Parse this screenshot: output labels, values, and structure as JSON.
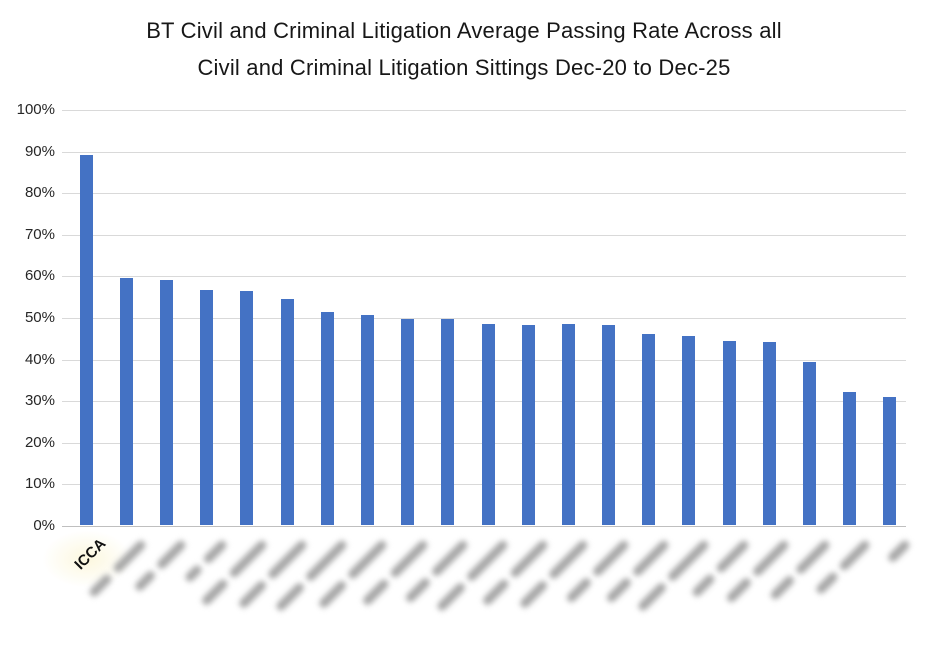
{
  "title": {
    "line1": "BT Civil and Criminal Litigation Average Passing Rate Across all",
    "line2": "Civil and Criminal Litigation Sittings Dec-20 to Dec-25"
  },
  "y_axis": {
    "tick_labels": [
      "100%",
      "90%",
      "80%",
      "70%",
      "60%",
      "50%",
      "40%",
      "30%",
      "20%",
      "10%",
      "0%"
    ]
  },
  "chart_data": {
    "type": "bar",
    "title": "BT Civil and Criminal Litigation Average Passing Rate Across all Civil and Criminal Litigation Sittings Dec-20 to Dec-25",
    "xlabel": "",
    "ylabel": "",
    "ylim": [
      0,
      100
    ],
    "ytick_step": 10,
    "grid": true,
    "legend": false,
    "categories": [
      "ICCA",
      "",
      "",
      "",
      "",
      "",
      "",
      "",
      "",
      "",
      "",
      "",
      "",
      "",
      "",
      "",
      "",
      "",
      "",
      "",
      ""
    ],
    "values": [
      89,
      59.3,
      58.8,
      56.6,
      56.2,
      54.3,
      51.2,
      50.5,
      49.5,
      49.5,
      48.4,
      48.2,
      48.3,
      48,
      45.9,
      45.5,
      44.2,
      44,
      39.3,
      32,
      30.7
    ],
    "redacted_categories_note": "All category labels except the first (ICCA) are blurred out in the source image",
    "redacted_smudge_lengths": [
      85,
      75,
      58,
      100,
      105,
      110,
      105,
      100,
      95,
      110,
      100,
      105,
      95,
      95,
      110,
      85,
      95,
      90,
      80,
      26
    ],
    "colors": {
      "bar": "#4472C4",
      "gridline": "#D9D9D9",
      "axis_line": "#BFBFBF",
      "text": "#171717",
      "smudge": "#A6A6A6",
      "icca_highlight": "#FCF7DC"
    }
  }
}
